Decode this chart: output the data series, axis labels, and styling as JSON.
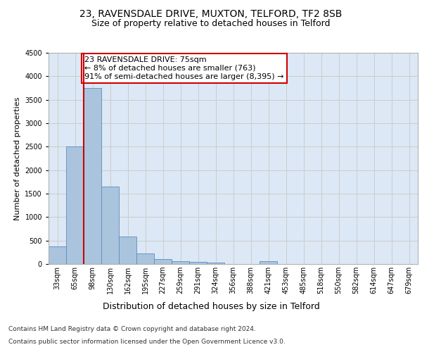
{
  "title1": "23, RAVENSDALE DRIVE, MUXTON, TELFORD, TF2 8SB",
  "title2": "Size of property relative to detached houses in Telford",
  "xlabel": "Distribution of detached houses by size in Telford",
  "ylabel": "Number of detached properties",
  "categories": [
    "33sqm",
    "65sqm",
    "98sqm",
    "130sqm",
    "162sqm",
    "195sqm",
    "227sqm",
    "259sqm",
    "291sqm",
    "324sqm",
    "356sqm",
    "388sqm",
    "421sqm",
    "453sqm",
    "485sqm",
    "518sqm",
    "550sqm",
    "582sqm",
    "614sqm",
    "647sqm",
    "679sqm"
  ],
  "values": [
    370,
    2500,
    3750,
    1650,
    590,
    230,
    110,
    65,
    45,
    35,
    0,
    0,
    55,
    0,
    0,
    0,
    0,
    0,
    0,
    0,
    0
  ],
  "bar_color": "#aac4de",
  "bar_edge_color": "#5b8db8",
  "redline_index": 1,
  "annotation_text": "23 RAVENSDALE DRIVE: 75sqm\n← 8% of detached houses are smaller (763)\n91% of semi-detached houses are larger (8,395) →",
  "annotation_box_color": "#ffffff",
  "annotation_box_edge": "#cc0000",
  "redline_color": "#cc0000",
  "grid_color": "#cccccc",
  "background_color": "#dce8f5",
  "footer_line1": "Contains HM Land Registry data © Crown copyright and database right 2024.",
  "footer_line2": "Contains public sector information licensed under the Open Government Licence v3.0.",
  "ylim": [
    0,
    4500
  ],
  "title1_fontsize": 10,
  "title2_fontsize": 9,
  "xlabel_fontsize": 9,
  "ylabel_fontsize": 8,
  "tick_fontsize": 7,
  "annotation_fontsize": 8,
  "footer_fontsize": 6.5
}
